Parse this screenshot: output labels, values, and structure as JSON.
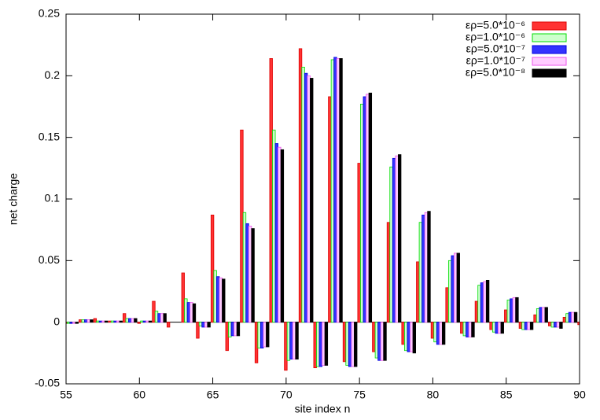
{
  "chart_data": {
    "type": "bar",
    "xlabel": "site index n",
    "ylabel": "net charge",
    "x": [
      55,
      56,
      57,
      58,
      59,
      60,
      61,
      62,
      63,
      64,
      65,
      66,
      67,
      68,
      69,
      70,
      71,
      72,
      73,
      74,
      75,
      76,
      77,
      78,
      79,
      80,
      81,
      82,
      83,
      84,
      85,
      86,
      87,
      88,
      89,
      90
    ],
    "xlim": [
      55,
      90
    ],
    "xticks": [
      55,
      60,
      65,
      70,
      75,
      80,
      85,
      90
    ],
    "ylim": [
      -0.05,
      0.25
    ],
    "yticks": [
      -0.05,
      0,
      0.05,
      0.1,
      0.15,
      0.2,
      0.25
    ],
    "legend": "upper right",
    "series": [
      {
        "name": "ερ=5.0*10⁻⁶",
        "color": "#ff3333",
        "edgecolor": "#dd0000",
        "values": [
          -0.001,
          0.002,
          0.003,
          0.001,
          0.007,
          -0.001,
          0.017,
          -0.004,
          0.04,
          -0.013,
          0.087,
          -0.023,
          0.156,
          -0.033,
          0.214,
          -0.039,
          0.222,
          -0.037,
          0.183,
          -0.032,
          0.129,
          -0.024,
          0.081,
          -0.018,
          0.049,
          -0.013,
          0.028,
          -0.009,
          0.017,
          -0.006,
          0.01,
          -0.005,
          0.006,
          -0.003,
          0.004,
          -0.002
        ]
      },
      {
        "name": "ερ=1.0*10⁻⁶",
        "color": "#ccffcc",
        "edgecolor": "#00dd00",
        "values": [
          -0.001,
          0.002,
          0.001,
          0.001,
          0.003,
          0.001,
          0.009,
          0.0,
          0.019,
          -0.003,
          0.042,
          -0.012,
          0.089,
          -0.021,
          0.156,
          -0.031,
          0.207,
          -0.036,
          0.213,
          -0.035,
          0.177,
          -0.029,
          0.126,
          -0.023,
          0.081,
          -0.016,
          0.05,
          -0.011,
          0.03,
          -0.008,
          0.018,
          -0.006,
          0.011,
          -0.004,
          0.007,
          -0.003
        ]
      },
      {
        "name": "ερ=5.0*10⁻⁷",
        "color": "#3333ff",
        "edgecolor": "#0000dd",
        "values": [
          -0.001,
          0.002,
          0.001,
          0.001,
          0.003,
          0.001,
          0.007,
          0.0,
          0.016,
          -0.004,
          0.037,
          -0.011,
          0.08,
          -0.021,
          0.145,
          -0.03,
          0.202,
          -0.036,
          0.215,
          -0.036,
          0.183,
          -0.031,
          0.133,
          -0.024,
          0.087,
          -0.018,
          0.054,
          -0.012,
          0.032,
          -0.009,
          0.019,
          -0.006,
          0.012,
          -0.004,
          0.008,
          -0.003
        ]
      },
      {
        "name": "ερ=1.0*10⁻⁷",
        "color": "#ffccff",
        "edgecolor": "#ee55ee",
        "values": [
          -0.001,
          0.002,
          0.001,
          0.001,
          0.003,
          0.001,
          0.007,
          0.0,
          0.016,
          -0.004,
          0.036,
          -0.011,
          0.078,
          -0.02,
          0.142,
          -0.03,
          0.2,
          -0.035,
          0.214,
          -0.036,
          0.185,
          -0.031,
          0.135,
          -0.024,
          0.089,
          -0.018,
          0.056,
          -0.012,
          0.033,
          -0.009,
          0.02,
          -0.006,
          0.012,
          -0.004,
          0.008,
          -0.003
        ]
      },
      {
        "name": "ερ=5.0*10⁻⁸",
        "color": "#000000",
        "edgecolor": "#000000",
        "values": [
          -0.001,
          0.002,
          0.001,
          0.001,
          0.003,
          0.001,
          0.007,
          0.0,
          0.015,
          -0.004,
          0.035,
          -0.011,
          0.076,
          -0.02,
          0.14,
          -0.03,
          0.198,
          -0.035,
          0.214,
          -0.036,
          0.186,
          -0.031,
          0.136,
          -0.025,
          0.09,
          -0.018,
          0.056,
          -0.012,
          0.034,
          -0.009,
          0.02,
          -0.006,
          0.012,
          -0.005,
          0.008,
          -0.003
        ]
      }
    ]
  }
}
